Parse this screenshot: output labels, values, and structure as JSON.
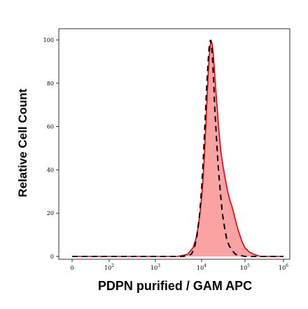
{
  "chart_data": {
    "type": "area",
    "xlabel": "PDPN purified / GAM APC",
    "ylabel": "Relative Cell Count",
    "x_scale": "log",
    "xlim": [
      1,
      1000000
    ],
    "ylim": [
      0,
      105
    ],
    "x_ticks": [
      {
        "value": 1,
        "label": "0",
        "exponent": ""
      },
      {
        "value": 100,
        "label": "10",
        "exponent": "2"
      },
      {
        "value": 1000,
        "label": "10",
        "exponent": "3"
      },
      {
        "value": 10000,
        "label": "10",
        "exponent": "4"
      },
      {
        "value": 100000,
        "label": "10",
        "exponent": "5"
      },
      {
        "value": 1000000,
        "label": "10",
        "exponent": "6"
      }
    ],
    "y_ticks": [
      0,
      20,
      40,
      60,
      80,
      100
    ],
    "grid": false,
    "series": [
      {
        "style": "filled",
        "color": "#e8000b",
        "fill": "#f9a3a3",
        "x": [
          1,
          3000,
          5000,
          6500,
          7500,
          8500,
          9500,
          10500,
          11500,
          12500,
          13500,
          14500,
          15500,
          16500,
          17500,
          18500,
          19500,
          21000,
          23000,
          25000,
          28000,
          31000,
          35000,
          40000,
          45000,
          52000,
          60000,
          70000,
          85000,
          100000,
          130000,
          170000,
          250000,
          1000000
        ],
        "y": [
          0,
          0,
          1,
          4,
          8,
          14,
          22,
          32,
          45,
          60,
          75,
          88,
          96,
          100,
          98,
          94,
          88,
          78,
          68,
          58,
          48,
          42,
          36,
          30,
          26,
          22,
          17,
          12,
          7,
          4,
          2,
          1,
          0,
          0
        ]
      },
      {
        "style": "dashed",
        "color": "#000000",
        "x": [
          1,
          4000,
          6000,
          7000,
          8000,
          9000,
          10000,
          11000,
          12000,
          13000,
          14000,
          15000,
          16000,
          17000,
          18000,
          19000,
          20000,
          22000,
          24000,
          27000,
          30000,
          34000,
          38000,
          43000,
          50000,
          60000,
          75000,
          100000,
          1000000
        ],
        "y": [
          0,
          0,
          1,
          4,
          10,
          19,
          31,
          46,
          62,
          77,
          89,
          97,
          100,
          97,
          90,
          80,
          69,
          55,
          42,
          30,
          20,
          13,
          8,
          5,
          3,
          1,
          0.5,
          0,
          0
        ]
      }
    ]
  }
}
